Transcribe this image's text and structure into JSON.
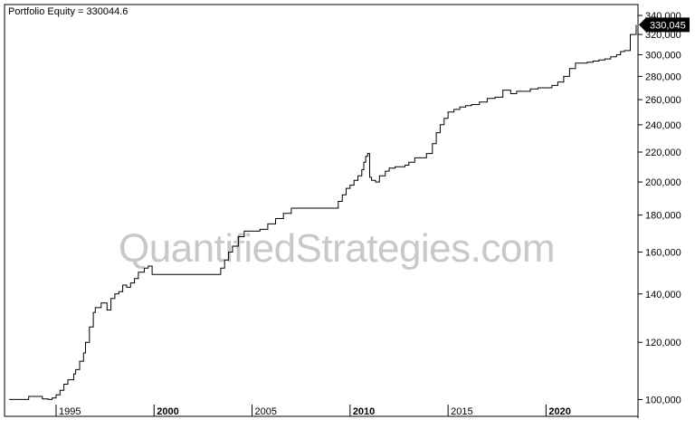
{
  "chart_data": {
    "type": "line",
    "title": "Portfolio Equity = 330044.6",
    "y_scale": "log",
    "ylim": [
      97000,
      345000
    ],
    "xlim": [
      1992.6,
      2024.6
    ],
    "y_ticks": [
      {
        "value": 100000,
        "label": "100,000"
      },
      {
        "value": 120000,
        "label": "120,000"
      },
      {
        "value": 140000,
        "label": "140,000"
      },
      {
        "value": 160000,
        "label": "160,000"
      },
      {
        "value": 180000,
        "label": "180,000"
      },
      {
        "value": 200000,
        "label": "200,000"
      },
      {
        "value": 220000,
        "label": "220,000"
      },
      {
        "value": 240000,
        "label": "240,000"
      },
      {
        "value": 260000,
        "label": "260,000"
      },
      {
        "value": 280000,
        "label": "280,000"
      },
      {
        "value": 300000,
        "label": "300,000"
      },
      {
        "value": 320000,
        "label": "320,000"
      },
      {
        "value": 340000,
        "label": "340,000"
      }
    ],
    "x_ticks": [
      {
        "value": 1995,
        "label": "1995",
        "bold": false
      },
      {
        "value": 2000,
        "label": "2000",
        "bold": true
      },
      {
        "value": 2005,
        "label": "2005",
        "bold": false
      },
      {
        "value": 2010,
        "label": "2010",
        "bold": true
      },
      {
        "value": 2015,
        "label": "2015",
        "bold": false
      },
      {
        "value": 2020,
        "label": "2020",
        "bold": true
      }
    ],
    "last_value_label": "330,045",
    "last_value": 330045,
    "series": [
      {
        "x": [
          1992.6,
          1993.4,
          1993.6,
          1994.0,
          1994.3,
          1994.6,
          1994.8,
          1995.0,
          1995.2,
          1995.4,
          1995.6,
          1995.9,
          1996.0,
          1996.2,
          1996.4,
          1996.5,
          1996.7,
          1996.9,
          1997.0,
          1997.3,
          1997.6,
          1997.8,
          1998.0,
          1998.2,
          1998.4,
          1998.6,
          1998.8,
          1999.0,
          1999.2,
          1999.5,
          1999.7,
          1999.9,
          2000.0,
          2000.2,
          2000.4,
          2003.2,
          2003.4,
          2003.6,
          2003.8,
          2004.0,
          2004.3,
          2004.6,
          2005.0,
          2005.4,
          2005.8,
          2006.2,
          2006.6,
          2007.0,
          2009.2,
          2009.4,
          2009.6,
          2009.8,
          2010.0,
          2010.2,
          2010.4,
          2010.6,
          2010.7,
          2010.8,
          2010.9,
          2011.0,
          2011.1,
          2011.3,
          2011.5,
          2011.8,
          2012.0,
          2012.3,
          2012.8,
          2013.0,
          2013.3,
          2013.6,
          2013.9,
          2014.2,
          2014.4,
          2014.6,
          2014.8,
          2015.0,
          2015.3,
          2015.6,
          2015.9,
          2016.2,
          2016.6,
          2017.0,
          2017.4,
          2017.8,
          2018.2,
          2018.5,
          2018.8,
          2019.2,
          2019.6,
          2019.9,
          2020.1,
          2020.3,
          2020.6,
          2020.9,
          2021.2,
          2021.5,
          2021.8,
          2022.1,
          2022.4,
          2022.7,
          2023.0,
          2023.3,
          2023.6,
          2023.8,
          2024.0,
          2024.3,
          2024.6
        ],
        "y": [
          100000,
          100000,
          101000,
          101000,
          100200,
          100000,
          100500,
          101500,
          103000,
          105000,
          106500,
          108500,
          110000,
          113000,
          116000,
          120000,
          126000,
          132000,
          134000,
          136000,
          133000,
          138000,
          140000,
          141000,
          144000,
          143000,
          145000,
          147000,
          150000,
          152000,
          153000,
          149000,
          149000,
          149000,
          149000,
          149000,
          152000,
          156000,
          160000,
          163000,
          168000,
          171000,
          171000,
          172000,
          175000,
          178000,
          181000,
          184000,
          184000,
          188000,
          192000,
          196000,
          198000,
          201000,
          204000,
          208000,
          213000,
          217000,
          219000,
          203000,
          201000,
          200000,
          204000,
          207000,
          209000,
          210000,
          211000,
          213000,
          216000,
          216000,
          219000,
          226000,
          234000,
          240000,
          245000,
          250000,
          252000,
          254000,
          255000,
          256000,
          258000,
          261000,
          262000,
          268000,
          265000,
          267000,
          267000,
          269000,
          270000,
          270000,
          270000,
          272000,
          275000,
          280000,
          287000,
          292000,
          292000,
          293000,
          294000,
          295000,
          296000,
          298000,
          300000,
          303000,
          304000,
          320000,
          330045
        ]
      }
    ],
    "watermark": "QuantifiedStrategies.com",
    "grid": false,
    "legend": "none"
  }
}
